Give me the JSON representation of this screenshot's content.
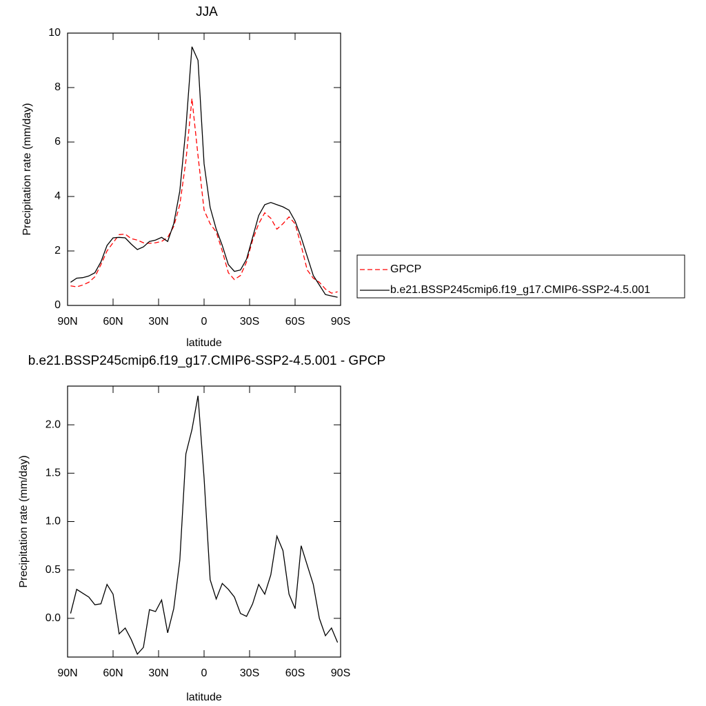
{
  "chart_data": [
    {
      "type": "line",
      "title": "JJA",
      "xlabel": "latitude",
      "ylabel": "Precipitation rate (mm/day)",
      "x": [
        88,
        84,
        80,
        76,
        72,
        68,
        64,
        60,
        56,
        52,
        48,
        44,
        40,
        36,
        32,
        28,
        24,
        20,
        16,
        12,
        8,
        4,
        0,
        -4,
        -8,
        -12,
        -16,
        -20,
        -24,
        -28,
        -32,
        -36,
        -40,
        -44,
        -48,
        -52,
        -56,
        -60,
        -64,
        -68,
        -72,
        -76,
        -80,
        -84,
        -88
      ],
      "xlim": [
        90,
        -90
      ],
      "xticks": [
        {
          "value": 90,
          "label": "90N"
        },
        {
          "value": 60,
          "label": "60N"
        },
        {
          "value": 30,
          "label": "30N"
        },
        0,
        {
          "value": -30,
          "label": "30S"
        },
        {
          "value": -60,
          "label": "60S"
        },
        {
          "value": -90,
          "label": "90S"
        }
      ],
      "ylim": [
        0,
        10
      ],
      "yticks": [
        0,
        2,
        4,
        6,
        8,
        10
      ],
      "legend": "right",
      "series": [
        {
          "name": "GPCP",
          "color": "#ff0000",
          "dash": true,
          "values": [
            0.72,
            0.68,
            0.75,
            0.85,
            1.05,
            1.5,
            2.0,
            2.3,
            2.6,
            2.62,
            2.45,
            2.4,
            2.3,
            2.28,
            2.3,
            2.35,
            2.5,
            2.9,
            3.7,
            5.3,
            7.6,
            5.5,
            3.5,
            3.0,
            2.7,
            2.0,
            1.2,
            0.95,
            1.1,
            1.6,
            2.4,
            3.0,
            3.4,
            3.2,
            2.8,
            3.0,
            3.25,
            3.0,
            2.2,
            1.3,
            1.0,
            0.85,
            0.6,
            0.45,
            0.5
          ]
        },
        {
          "name": "b.e21.BSSP245cmip6.f19_g17.CMIP6-SSP2-4.5.001",
          "color": "#000000",
          "dash": false,
          "values": [
            0.85,
            1.0,
            1.02,
            1.08,
            1.2,
            1.6,
            2.2,
            2.48,
            2.5,
            2.48,
            2.25,
            2.05,
            2.15,
            2.35,
            2.4,
            2.5,
            2.35,
            3.0,
            4.2,
            6.5,
            9.5,
            9.0,
            5.2,
            3.6,
            2.8,
            2.2,
            1.5,
            1.25,
            1.3,
            1.7,
            2.5,
            3.3,
            3.7,
            3.78,
            3.7,
            3.62,
            3.5,
            3.1,
            2.5,
            1.8,
            1.1,
            0.75,
            0.4,
            0.35,
            0.3
          ]
        }
      ]
    },
    {
      "type": "line",
      "title": "b.e21.BSSP245cmip6.f19_g17.CMIP6-SSP2-4.5.001 - GPCP",
      "xlabel": "latitude",
      "ylabel": "Precipitation rate (mm/day)",
      "x": [
        88,
        84,
        80,
        76,
        72,
        68,
        64,
        60,
        56,
        52,
        48,
        44,
        40,
        36,
        32,
        28,
        24,
        20,
        16,
        12,
        8,
        4,
        0,
        -4,
        -8,
        -12,
        -16,
        -20,
        -24,
        -28,
        -32,
        -36,
        -40,
        -44,
        -48,
        -52,
        -56,
        -60,
        -64,
        -68,
        -72,
        -76,
        -80,
        -84,
        -88
      ],
      "xlim": [
        90,
        -90
      ],
      "xticks": [
        {
          "value": 90,
          "label": "90N"
        },
        {
          "value": 60,
          "label": "60N"
        },
        {
          "value": 30,
          "label": "30N"
        },
        0,
        {
          "value": -30,
          "label": "30S"
        },
        {
          "value": -60,
          "label": "60S"
        },
        {
          "value": -90,
          "label": "90S"
        }
      ],
      "ylim": [
        -0.4,
        2.4
      ],
      "yticks": [
        {
          "value": 0,
          "label": "0.0"
        },
        0.5,
        {
          "value": 1,
          "label": "1.0"
        },
        1.5,
        {
          "value": 2,
          "label": "2.0"
        }
      ],
      "color": "#000000",
      "values": [
        0.05,
        0.3,
        0.26,
        0.22,
        0.14,
        0.15,
        0.35,
        0.25,
        -0.16,
        -0.1,
        -0.22,
        -0.37,
        -0.3,
        0.09,
        0.07,
        0.19,
        -0.15,
        0.1,
        0.6,
        1.7,
        1.95,
        2.3,
        1.45,
        0.4,
        0.2,
        0.36,
        0.3,
        0.22,
        0.05,
        0.02,
        0.15,
        0.35,
        0.25,
        0.45,
        0.85,
        0.7,
        0.25,
        0.1,
        0.75,
        0.55,
        0.35,
        0.0,
        -0.18,
        -0.1,
        -0.25
      ]
    }
  ]
}
